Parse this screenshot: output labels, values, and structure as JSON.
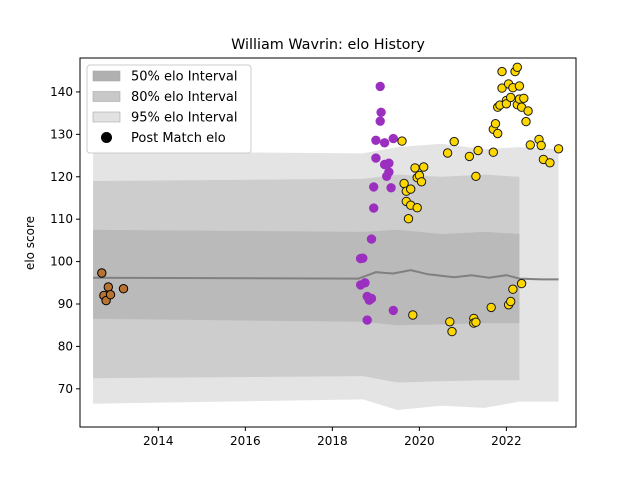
{
  "chart_data": {
    "type": "scatter",
    "title": "William Wavrin: elo History",
    "xlabel": "",
    "ylabel": "elo score",
    "xlim": [
      2012.2,
      2023.6
    ],
    "ylim": [
      61,
      148
    ],
    "xticks": [
      2014,
      2016,
      2018,
      2020,
      2022
    ],
    "yticks": [
      70,
      80,
      90,
      100,
      110,
      120,
      130,
      140
    ],
    "legend": {
      "placement": "top-left",
      "entries": [
        {
          "label": "50% elo Interval",
          "kind": "patch",
          "color": "#b0b0b0"
        },
        {
          "label": "80% elo Interval",
          "kind": "patch",
          "color": "#c8c8c8"
        },
        {
          "label": "95% elo Interval",
          "kind": "patch",
          "color": "#e2e2e2"
        },
        {
          "label": "Post Match elo",
          "kind": "marker",
          "color": "#000000"
        }
      ]
    },
    "mean_line": {
      "color": "#808080",
      "x": [
        2012.5,
        2018.6,
        2019.0,
        2019.4,
        2019.8,
        2020.2,
        2020.8,
        2021.2,
        2021.6,
        2022.0,
        2022.3,
        2022.8,
        2023.2
      ],
      "y": [
        96.2,
        96.0,
        97.5,
        97.2,
        98.0,
        97.0,
        96.3,
        96.8,
        96.2,
        96.8,
        96.0,
        95.8,
        95.8
      ]
    },
    "bands": [
      {
        "name": "95% elo Interval",
        "color": "#e4e4e4",
        "upper": [
          [
            2012.5,
            126.0
          ],
          [
            2018.7,
            125.5
          ],
          [
            2019.5,
            127.0
          ],
          [
            2020.5,
            127.8
          ],
          [
            2021.5,
            126.5
          ],
          [
            2022.3,
            127.0
          ],
          [
            2023.2,
            126.5
          ]
        ],
        "lower": [
          [
            2012.5,
            66.5
          ],
          [
            2018.7,
            67.5
          ],
          [
            2019.5,
            65.0
          ],
          [
            2020.5,
            66.0
          ],
          [
            2021.5,
            65.5
          ],
          [
            2022.3,
            67.0
          ],
          [
            2023.2,
            67.0
          ]
        ]
      },
      {
        "name": "80% elo Interval",
        "color": "#cdcdcd",
        "upper": [
          [
            2012.5,
            119.0
          ],
          [
            2018.7,
            119.5
          ],
          [
            2019.5,
            120.5
          ],
          [
            2020.5,
            120.0
          ],
          [
            2021.5,
            120.5
          ],
          [
            2022.3,
            120.0
          ]
        ],
        "lower": [
          [
            2012.5,
            72.5
          ],
          [
            2018.7,
            73.0
          ],
          [
            2019.5,
            71.5
          ],
          [
            2020.5,
            71.8
          ],
          [
            2021.5,
            72.0
          ],
          [
            2022.3,
            72.0
          ]
        ]
      },
      {
        "name": "50% elo Interval",
        "color": "#bababa",
        "upper": [
          [
            2012.5,
            107.5
          ],
          [
            2018.7,
            107.0
          ],
          [
            2019.5,
            107.5
          ],
          [
            2020.5,
            106.5
          ],
          [
            2021.5,
            107.0
          ],
          [
            2022.3,
            106.5
          ]
        ],
        "lower": [
          [
            2012.5,
            86.5
          ],
          [
            2018.7,
            85.8
          ],
          [
            2019.5,
            85.0
          ],
          [
            2020.5,
            85.2
          ],
          [
            2021.5,
            85.5
          ],
          [
            2022.3,
            85.5
          ]
        ]
      }
    ],
    "series": [
      {
        "color": "#b87333",
        "edge": "#000000",
        "points": [
          [
            2012.7,
            97.3
          ],
          [
            2012.75,
            92.0
          ],
          [
            2012.8,
            90.8
          ],
          [
            2012.85,
            94.0
          ],
          [
            2012.9,
            92.2
          ],
          [
            2013.2,
            93.6
          ]
        ]
      },
      {
        "color": "#9b30c0",
        "edge": "#9b30c0",
        "points": [
          [
            2018.65,
            100.7
          ],
          [
            2018.7,
            100.8
          ],
          [
            2018.65,
            94.5
          ],
          [
            2018.75,
            95.0
          ],
          [
            2018.8,
            86.2
          ],
          [
            2018.8,
            91.8
          ],
          [
            2018.85,
            90.9
          ],
          [
            2018.9,
            91.3
          ],
          [
            2018.9,
            105.3
          ],
          [
            2018.95,
            112.6
          ],
          [
            2018.95,
            117.6
          ],
          [
            2019.0,
            124.4
          ],
          [
            2019.0,
            128.6
          ],
          [
            2019.1,
            141.3
          ],
          [
            2019.1,
            133.1
          ],
          [
            2019.12,
            135.2
          ],
          [
            2019.2,
            128.0
          ],
          [
            2019.2,
            122.9
          ],
          [
            2019.25,
            120.1
          ],
          [
            2019.3,
            123.2
          ],
          [
            2019.3,
            121.1
          ],
          [
            2019.35,
            117.4
          ],
          [
            2019.4,
            129.0
          ],
          [
            2019.4,
            88.5
          ]
        ]
      },
      {
        "color": "#ffd700",
        "edge": "#1a1a1a",
        "points": [
          [
            2019.6,
            128.4
          ],
          [
            2019.65,
            118.4
          ],
          [
            2019.7,
            116.6
          ],
          [
            2019.7,
            114.2
          ],
          [
            2019.75,
            110.1
          ],
          [
            2019.8,
            117.1
          ],
          [
            2019.8,
            113.3
          ],
          [
            2019.85,
            87.4
          ],
          [
            2019.9,
            122.1
          ],
          [
            2019.95,
            112.7
          ],
          [
            2019.95,
            119.8
          ],
          [
            2020.0,
            120.3
          ],
          [
            2020.05,
            118.8
          ],
          [
            2020.1,
            122.3
          ],
          [
            2020.65,
            125.6
          ],
          [
            2020.7,
            85.8
          ],
          [
            2020.75,
            83.5
          ],
          [
            2020.8,
            128.3
          ],
          [
            2021.15,
            124.8
          ],
          [
            2021.25,
            86.6
          ],
          [
            2021.25,
            85.5
          ],
          [
            2021.3,
            85.7
          ],
          [
            2021.3,
            120.1
          ],
          [
            2021.35,
            126.2
          ],
          [
            2021.65,
            89.2
          ],
          [
            2021.7,
            125.8
          ],
          [
            2021.7,
            131.2
          ],
          [
            2021.75,
            132.5
          ],
          [
            2021.8,
            130.2
          ],
          [
            2021.8,
            136.4
          ],
          [
            2021.85,
            136.9
          ],
          [
            2021.9,
            140.9
          ],
          [
            2021.9,
            144.8
          ],
          [
            2022.0,
            138.0
          ],
          [
            2022.0,
            137.2
          ],
          [
            2022.05,
            89.8
          ],
          [
            2022.05,
            141.9
          ],
          [
            2022.1,
            138.7
          ],
          [
            2022.1,
            90.6
          ],
          [
            2022.15,
            93.5
          ],
          [
            2022.15,
            141.0
          ],
          [
            2022.2,
            144.8
          ],
          [
            2022.25,
            145.8
          ],
          [
            2022.25,
            137.0
          ],
          [
            2022.3,
            138.3
          ],
          [
            2022.3,
            141.4
          ],
          [
            2022.35,
            94.8
          ],
          [
            2022.35,
            136.4
          ],
          [
            2022.4,
            138.5
          ],
          [
            2022.45,
            133.0
          ],
          [
            2022.5,
            135.5
          ],
          [
            2022.55,
            127.5
          ],
          [
            2022.75,
            128.8
          ],
          [
            2022.8,
            127.4
          ],
          [
            2022.85,
            124.1
          ],
          [
            2023.0,
            123.3
          ],
          [
            2023.2,
            126.6
          ]
        ]
      }
    ]
  }
}
